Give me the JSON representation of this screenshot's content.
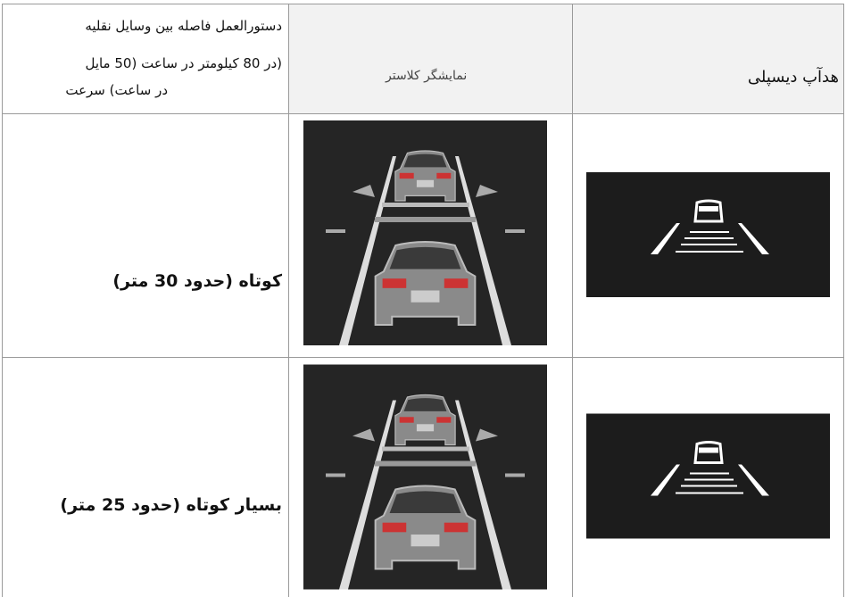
{
  "header": {
    "distance_setting": [
      "دستورالعمل فاصله بین وسایل نقلیه",
      "(در 80 کیلومتر در ساعت (50 مایل",
      "در ساعت) سرعت"
    ],
    "cluster_display": "نمایشگر کلاستر",
    "head_up_display": "هدآپ دیسپلی"
  },
  "rows": [
    {
      "distance": "کوتاه (حدود 30 متر)"
    },
    {
      "distance": "بسیار کوتاه (حدود 25 متر)"
    }
  ]
}
